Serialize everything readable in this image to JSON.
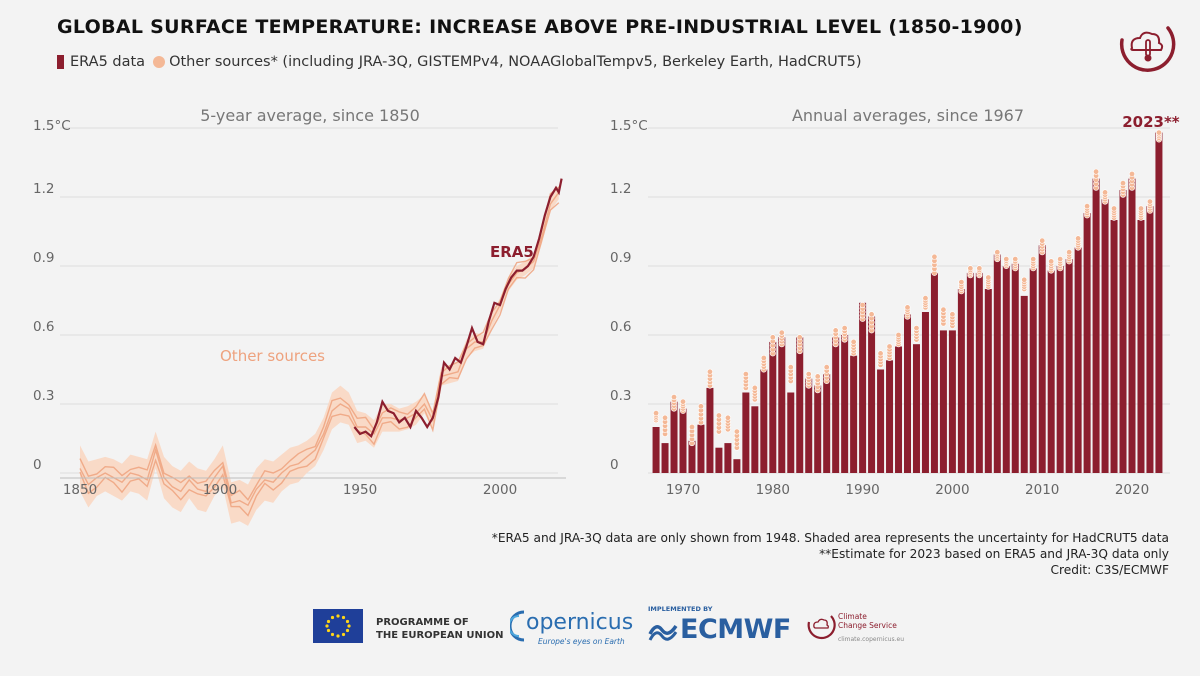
{
  "header": {
    "title": "GLOBAL SURFACE TEMPERATURE: INCREASE ABOVE PRE-INDUSTRIAL LEVEL (1850-1900)",
    "legend_era5": "ERA5 data",
    "legend_other": "Other sources* (including JRA-3Q, GISTEMPv4, NOAAGlobalTempv5, Berkeley Earth, HadCRUT5)"
  },
  "colors": {
    "era5": "#8c1e2e",
    "other": "#f4b896",
    "other_band": "#f9d7c2",
    "other_line": "#eea27e",
    "background": "#f3f3f3"
  },
  "chart_data": [
    {
      "type": "line",
      "title": "5-year average, since 1850",
      "ylim": [
        -0.15,
        1.5
      ],
      "yticks": [
        0,
        0.3,
        0.6,
        0.9,
        1.2,
        1.5
      ],
      "ytick_labels": [
        "0",
        "0.3",
        "0.6",
        "0.9",
        "1.2",
        "1.5°C"
      ],
      "xlim": [
        1846,
        2024
      ],
      "xticks": [
        1850,
        1900,
        1950,
        2000
      ],
      "xtick_labels": [
        "1850",
        "1900",
        "1950",
        "2000"
      ],
      "annotations": [
        "ERA5",
        "Other sources"
      ],
      "grid": true,
      "series": [
        {
          "name": "ERA5",
          "x": [
            1948,
            1950,
            1952,
            1954,
            1956,
            1958,
            1960,
            1962,
            1964,
            1966,
            1968,
            1970,
            1972,
            1974,
            1976,
            1978,
            1980,
            1982,
            1984,
            1986,
            1988,
            1990,
            1992,
            1994,
            1996,
            1998,
            2000,
            2002,
            2004,
            2006,
            2008,
            2010,
            2012,
            2014,
            2016,
            2018,
            2020,
            2021,
            2022
          ],
          "values": [
            0.2,
            0.17,
            0.18,
            0.16,
            0.22,
            0.31,
            0.27,
            0.26,
            0.22,
            0.24,
            0.2,
            0.27,
            0.24,
            0.2,
            0.24,
            0.33,
            0.48,
            0.45,
            0.5,
            0.48,
            0.55,
            0.63,
            0.57,
            0.56,
            0.66,
            0.74,
            0.73,
            0.8,
            0.85,
            0.88,
            0.88,
            0.9,
            0.94,
            1.02,
            1.12,
            1.2,
            1.24,
            1.22,
            1.28
          ]
        },
        {
          "name": "Other sources",
          "x": [
            1850,
            1853,
            1856,
            1859,
            1862,
            1865,
            1868,
            1871,
            1874,
            1877,
            1880,
            1883,
            1886,
            1889,
            1892,
            1895,
            1898,
            1901,
            1904,
            1907,
            1910,
            1913,
            1916,
            1919,
            1922,
            1925,
            1928,
            1931,
            1934,
            1937,
            1940,
            1943,
            1946,
            1949,
            1952,
            1955,
            1958,
            1961,
            1964,
            1967,
            1970,
            1973,
            1976,
            1979,
            1982,
            1985,
            1988,
            1991,
            1994,
            1997,
            2000,
            2003,
            2006,
            2009,
            2012,
            2015,
            2018,
            2021
          ],
          "values": [
            0.02,
            -0.05,
            -0.02,
            0.0,
            -0.02,
            -0.04,
            0.0,
            -0.01,
            -0.03,
            0.1,
            -0.02,
            -0.06,
            -0.08,
            -0.03,
            -0.07,
            -0.08,
            -0.02,
            0.03,
            -0.13,
            -0.12,
            -0.14,
            -0.07,
            -0.03,
            -0.04,
            0.0,
            0.03,
            0.04,
            0.07,
            0.1,
            0.17,
            0.27,
            0.3,
            0.28,
            0.2,
            0.2,
            0.17,
            0.24,
            0.24,
            0.23,
            0.24,
            0.26,
            0.3,
            0.23,
            0.42,
            0.43,
            0.44,
            0.54,
            0.57,
            0.57,
            0.66,
            0.73,
            0.82,
            0.87,
            0.89,
            0.92,
            1.03,
            1.17,
            1.22
          ],
          "upper": [
            0.12,
            0.05,
            0.06,
            0.07,
            0.06,
            0.04,
            0.08,
            0.07,
            0.06,
            0.18,
            0.07,
            0.03,
            0.01,
            0.05,
            0.02,
            0.01,
            0.06,
            0.12,
            -0.04,
            -0.03,
            -0.05,
            0.02,
            0.06,
            0.05,
            0.08,
            0.11,
            0.12,
            0.14,
            0.17,
            0.24,
            0.35,
            0.38,
            0.35,
            0.27,
            0.26,
            0.23,
            0.3,
            0.3,
            0.28,
            0.29,
            0.31,
            0.34,
            0.27,
            0.46,
            0.47,
            0.48,
            0.58,
            0.61,
            0.6,
            0.69,
            0.76,
            0.85,
            0.9,
            0.92,
            0.95,
            1.06,
            1.2,
            1.25
          ],
          "lower": [
            -0.08,
            -0.15,
            -0.1,
            -0.08,
            -0.1,
            -0.12,
            -0.08,
            -0.09,
            -0.12,
            0.02,
            -0.11,
            -0.15,
            -0.17,
            -0.11,
            -0.16,
            -0.17,
            -0.1,
            -0.06,
            -0.22,
            -0.21,
            -0.23,
            -0.16,
            -0.12,
            -0.13,
            -0.08,
            -0.05,
            -0.04,
            0.0,
            0.03,
            0.1,
            0.19,
            0.22,
            0.21,
            0.13,
            0.14,
            0.11,
            0.18,
            0.18,
            0.18,
            0.19,
            0.21,
            0.26,
            0.19,
            0.38,
            0.39,
            0.4,
            0.5,
            0.53,
            0.54,
            0.63,
            0.7,
            0.79,
            0.84,
            0.86,
            0.89,
            1.0,
            1.14,
            1.19
          ]
        }
      ]
    },
    {
      "type": "bar",
      "title": "Annual averages, since 1967",
      "ylim": [
        0,
        1.5
      ],
      "yticks": [
        0,
        0.3,
        0.6,
        0.9,
        1.2,
        1.5
      ],
      "ytick_labels": [
        "0",
        "0.3",
        "0.6",
        "0.9",
        "1.2",
        "1.5°C"
      ],
      "xticks": [
        1970,
        1980,
        1990,
        2000,
        2010,
        2020
      ],
      "xtick_labels": [
        "1970",
        "1980",
        "1990",
        "2000",
        "2010",
        "2020"
      ],
      "annotations": [
        "2023**"
      ],
      "grid": true,
      "categories": [
        1967,
        1968,
        1969,
        1970,
        1971,
        1972,
        1973,
        1974,
        1975,
        1976,
        1977,
        1978,
        1979,
        1980,
        1981,
        1982,
        1983,
        1984,
        1985,
        1986,
        1987,
        1988,
        1989,
        1990,
        1991,
        1992,
        1993,
        1994,
        1995,
        1996,
        1997,
        1998,
        1999,
        2000,
        2001,
        2002,
        2003,
        2004,
        2005,
        2006,
        2007,
        2008,
        2009,
        2010,
        2011,
        2012,
        2013,
        2014,
        2015,
        2016,
        2017,
        2018,
        2019,
        2020,
        2021,
        2022,
        2023
      ],
      "series": [
        {
          "name": "ERA5",
          "values": [
            0.2,
            0.13,
            0.31,
            0.28,
            0.14,
            0.21,
            0.37,
            0.11,
            0.13,
            0.06,
            0.35,
            0.29,
            0.45,
            0.57,
            0.59,
            0.35,
            0.59,
            0.41,
            0.38,
            0.43,
            0.59,
            0.6,
            0.51,
            0.74,
            0.68,
            0.45,
            0.49,
            0.55,
            0.69,
            0.56,
            0.7,
            0.87,
            0.62,
            0.62,
            0.8,
            0.87,
            0.87,
            0.8,
            0.95,
            0.9,
            0.91,
            0.77,
            0.89,
            0.99,
            0.88,
            0.9,
            0.93,
            0.98,
            1.13,
            1.28,
            1.19,
            1.1,
            1.23,
            1.28,
            1.1,
            1.16,
            1.48
          ]
        },
        {
          "name": "Other sources",
          "min": [
            0.23,
            0.17,
            0.28,
            0.27,
            0.13,
            0.22,
            0.38,
            0.18,
            0.19,
            0.11,
            0.37,
            0.32,
            0.45,
            0.52,
            0.56,
            0.4,
            0.53,
            0.38,
            0.36,
            0.4,
            0.56,
            0.58,
            0.52,
            0.67,
            0.62,
            0.47,
            0.5,
            0.56,
            0.68,
            0.58,
            0.72,
            0.87,
            0.65,
            0.64,
            0.79,
            0.86,
            0.86,
            0.81,
            0.93,
            0.9,
            0.89,
            0.8,
            0.89,
            0.96,
            0.88,
            0.89,
            0.92,
            0.98,
            1.12,
            1.24,
            1.18,
            1.11,
            1.21,
            1.24,
            1.11,
            1.14,
            1.45
          ],
          "max": [
            0.26,
            0.24,
            0.33,
            0.31,
            0.2,
            0.29,
            0.44,
            0.25,
            0.24,
            0.18,
            0.43,
            0.37,
            0.5,
            0.59,
            0.61,
            0.46,
            0.59,
            0.43,
            0.42,
            0.46,
            0.62,
            0.63,
            0.57,
            0.73,
            0.69,
            0.52,
            0.55,
            0.6,
            0.72,
            0.63,
            0.76,
            0.94,
            0.71,
            0.69,
            0.83,
            0.89,
            0.89,
            0.85,
            0.96,
            0.93,
            0.93,
            0.84,
            0.93,
            1.01,
            0.92,
            0.93,
            0.96,
            1.02,
            1.16,
            1.31,
            1.22,
            1.15,
            1.26,
            1.3,
            1.15,
            1.18,
            1.48
          ]
        }
      ]
    }
  ],
  "footnotes": [
    "*ERA5 and JRA-3Q data are only shown from 1948. Shaded area represents the uncertainty for HadCRUT5 data",
    "**Estimate for 2023 based on ERA5 and JRA-3Q data only",
    "Credit: C3S/ECMWF"
  ],
  "footer": {
    "eu_line1": "PROGRAMME OF",
    "eu_line2": "THE EUROPEAN UNION",
    "copernicus": "opernicus",
    "copernicus_tag": "Europe's eyes on Earth",
    "implemented_by": "IMPLEMENTED BY",
    "ecmwf": "ECMWF",
    "c3s_line1": "Climate",
    "c3s_line2": "Change Service",
    "c3s_url": "climate.copernicus.eu"
  }
}
